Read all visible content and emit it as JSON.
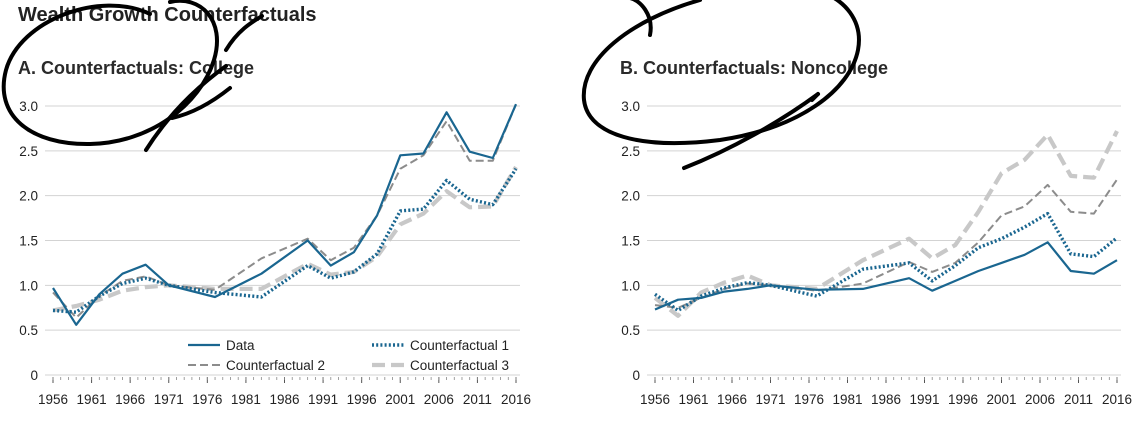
{
  "page": {
    "title": "Wealth Growth Counterfactuals"
  },
  "colors": {
    "data": "#1a6690",
    "cf1": "#1a6690",
    "cf2": "#8c8c8c",
    "cf3": "#c8c8c8",
    "grid": "#d3d3d3",
    "scribble": "#000000"
  },
  "chart_data": [
    {
      "type": "line",
      "title": "A. Counterfactuals: College",
      "xlabel": "",
      "ylabel": "",
      "ylim": [
        0,
        3.0
      ],
      "yticks": [
        0,
        0.5,
        1.0,
        1.5,
        2.0,
        2.5,
        3.0
      ],
      "ytick_labels": [
        "0",
        "0.5",
        "1.0",
        "1.5",
        "2.0",
        "2.5",
        "3.0"
      ],
      "x_ticks": [
        "1956",
        "1961",
        "1966",
        "1971",
        "1976",
        "1981",
        "1986",
        "1991",
        "1996",
        "2001",
        "2006",
        "2011",
        "2016"
      ],
      "x": [
        1956,
        1959,
        1962,
        1965,
        1968,
        1971,
        1977,
        1983,
        1989,
        1992,
        1995,
        1998,
        2001,
        2004,
        2007,
        2010,
        2013,
        2016
      ],
      "grid": "horizontal",
      "legend": "bottom-right",
      "series": [
        {
          "name": "Data",
          "values": [
            0.97,
            0.56,
            0.9,
            1.13,
            1.23,
            1.0,
            0.87,
            1.13,
            1.5,
            1.22,
            1.37,
            1.78,
            2.45,
            2.47,
            2.93,
            2.49,
            2.42,
            3.02
          ]
        },
        {
          "name": "Counterfactual 1",
          "values": [
            0.72,
            0.7,
            0.88,
            1.02,
            1.08,
            1.0,
            0.92,
            0.87,
            1.22,
            1.08,
            1.15,
            1.35,
            1.83,
            1.85,
            2.17,
            1.96,
            1.9,
            2.3
          ]
        },
        {
          "name": "Counterfactual 2",
          "values": [
            0.92,
            0.64,
            0.88,
            1.05,
            1.1,
            1.0,
            0.95,
            1.3,
            1.52,
            1.28,
            1.42,
            1.78,
            2.3,
            2.45,
            2.83,
            2.39,
            2.39,
            3.02
          ]
        },
        {
          "name": "Counterfactual 3",
          "values": [
            0.72,
            0.77,
            0.84,
            0.94,
            0.98,
            1.0,
            0.96,
            0.96,
            1.24,
            1.12,
            1.15,
            1.32,
            1.68,
            1.8,
            2.05,
            1.87,
            1.88,
            2.32
          ]
        }
      ]
    },
    {
      "type": "line",
      "title": "B. Counterfactuals: Noncollege",
      "xlabel": "",
      "ylabel": "",
      "ylim": [
        0,
        3.0
      ],
      "yticks": [
        0,
        0.5,
        1.0,
        1.5,
        2.0,
        2.5,
        3.0
      ],
      "ytick_labels": [
        "0",
        "0.5",
        "1.0",
        "1.5",
        "2.0",
        "2.5",
        "3.0"
      ],
      "x_ticks": [
        "1956",
        "1961",
        "1966",
        "1971",
        "1976",
        "1981",
        "1986",
        "1991",
        "1996",
        "2001",
        "2006",
        "2011",
        "2016"
      ],
      "x": [
        1956,
        1959,
        1962,
        1965,
        1968,
        1971,
        1977,
        1983,
        1989,
        1992,
        1995,
        1998,
        2001,
        2004,
        2007,
        2010,
        2013,
        2016
      ],
      "grid": "horizontal",
      "series": [
        {
          "name": "Data",
          "values": [
            0.73,
            0.84,
            0.86,
            0.93,
            0.96,
            1.0,
            0.95,
            0.96,
            1.08,
            0.94,
            1.05,
            1.16,
            1.25,
            1.34,
            1.48,
            1.16,
            1.13,
            1.28
          ]
        },
        {
          "name": "Counterfactual 1",
          "values": [
            0.9,
            0.72,
            0.88,
            0.97,
            1.03,
            1.0,
            0.88,
            1.18,
            1.25,
            1.05,
            1.22,
            1.42,
            1.52,
            1.65,
            1.8,
            1.35,
            1.32,
            1.53
          ]
        },
        {
          "name": "Counterfactual 2",
          "values": [
            0.78,
            0.75,
            0.86,
            0.96,
            1.02,
            1.0,
            0.94,
            1.02,
            1.26,
            1.15,
            1.25,
            1.48,
            1.78,
            1.88,
            2.12,
            1.82,
            1.8,
            2.18
          ]
        },
        {
          "name": "Counterfactual 3",
          "values": [
            0.86,
            0.66,
            0.92,
            1.03,
            1.11,
            1.0,
            0.96,
            1.28,
            1.52,
            1.3,
            1.45,
            1.82,
            2.25,
            2.4,
            2.68,
            2.22,
            2.2,
            2.72
          ]
        }
      ]
    }
  ]
}
